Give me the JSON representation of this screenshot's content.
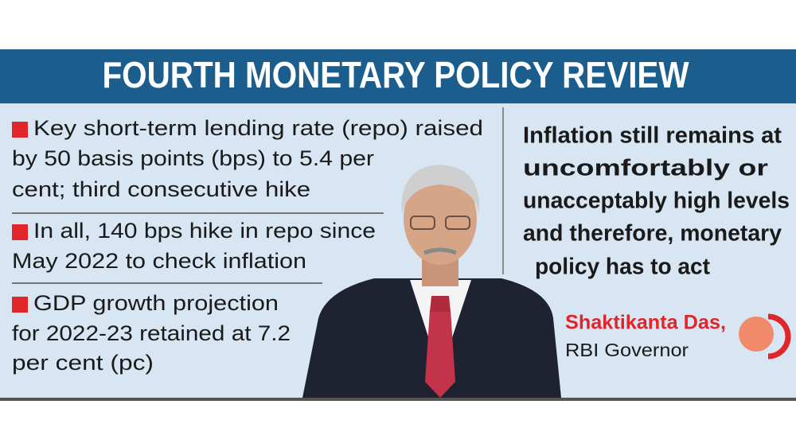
{
  "title": "FOURTH MONETARY POLICY REVIEW",
  "bullets": [
    [
      "Key short-term lending rate (repo) raised",
      "by 50 basis points (bps) to 5.4 per",
      "cent; third consecutive hike"
    ],
    [
      "In all, 140 bps hike in repo since",
      "May 2022 to check inflation"
    ],
    [
      "GDP growth projection",
      "for 2022-23 retained at 7.2",
      "per cent (pc)"
    ]
  ],
  "quote": [
    "Inflation still remains at",
    "uncomfortably or",
    "unacceptably high levels",
    "and therefore, monetary",
    "policy has to act"
  ],
  "speaker": {
    "name": "Shaktikanta Das,",
    "role": "RBI Governor"
  }
}
